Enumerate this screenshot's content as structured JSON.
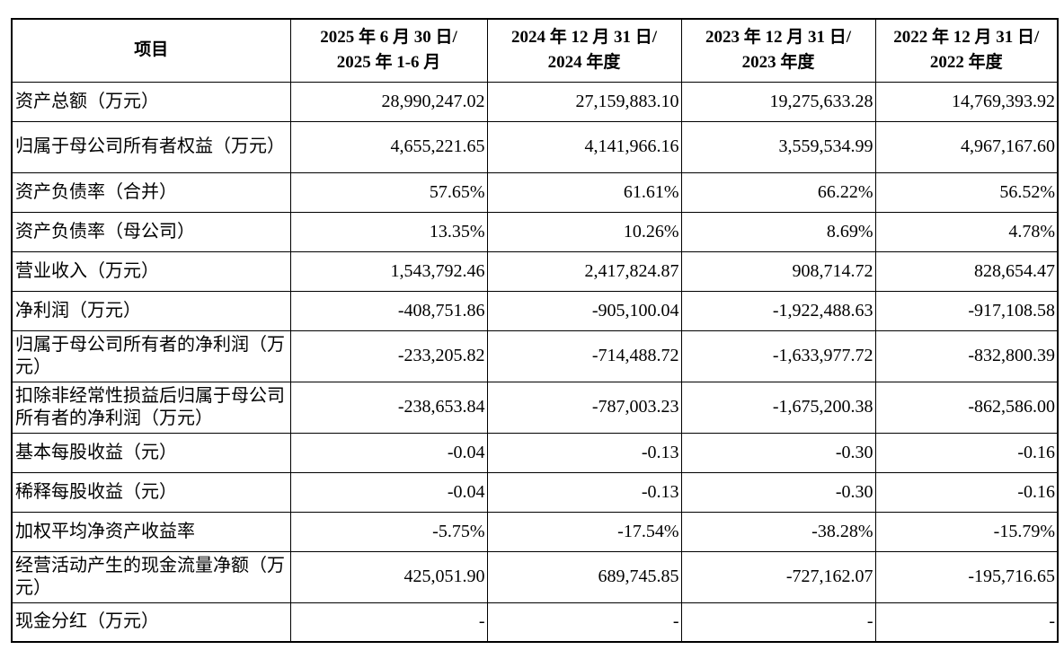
{
  "table": {
    "header": {
      "item": "项目",
      "periods": [
        {
          "line1": "2025 年 6 月 30 日/",
          "line2": "2025 年 1-6 月"
        },
        {
          "line1": "2024 年 12 月 31 日/",
          "line2": "2024 年度"
        },
        {
          "line1": "2023 年 12 月 31 日/",
          "line2": "2023 年度"
        },
        {
          "line1": "2022 年 12 月 31 日/",
          "line2": "2022 年度"
        }
      ]
    },
    "rows": [
      {
        "label": "资产总额（万元）",
        "values": [
          "28,990,247.02",
          "27,159,883.10",
          "19,275,633.28",
          "14,769,393.92"
        ]
      },
      {
        "label": "归属于母公司所有者权益（万元）",
        "values": [
          "4,655,221.65",
          "4,141,966.16",
          "3,559,534.99",
          "4,967,167.60"
        ]
      },
      {
        "label": "资产负债率（合并）",
        "values": [
          "57.65%",
          "61.61%",
          "66.22%",
          "56.52%"
        ]
      },
      {
        "label": "资产负债率（母公司）",
        "values": [
          "13.35%",
          "10.26%",
          "8.69%",
          "4.78%"
        ]
      },
      {
        "label": "营业收入（万元）",
        "values": [
          "1,543,792.46",
          "2,417,824.87",
          "908,714.72",
          "828,654.47"
        ]
      },
      {
        "label": "净利润（万元）",
        "values": [
          "-408,751.86",
          "-905,100.04",
          "-1,922,488.63",
          "-917,108.58"
        ]
      },
      {
        "label": "归属于母公司所有者的净利润（万元）",
        "values": [
          "-233,205.82",
          "-714,488.72",
          "-1,633,977.72",
          "-832,800.39"
        ]
      },
      {
        "label": "扣除非经常性损益后归属于母公司所有者的净利润（万元）",
        "values": [
          "-238,653.84",
          "-787,003.23",
          "-1,675,200.38",
          "-862,586.00"
        ]
      },
      {
        "label": "基本每股收益（元）",
        "values": [
          "-0.04",
          "-0.13",
          "-0.30",
          "-0.16"
        ]
      },
      {
        "label": "稀释每股收益（元）",
        "values": [
          "-0.04",
          "-0.13",
          "-0.30",
          "-0.16"
        ]
      },
      {
        "label": "加权平均净资产收益率",
        "values": [
          "-5.75%",
          "-17.54%",
          "-38.28%",
          "-15.79%"
        ]
      },
      {
        "label": "经营活动产生的现金流量净额（万元）",
        "values": [
          "425,051.90",
          "689,745.85",
          "-727,162.07",
          "-195,716.65"
        ]
      },
      {
        "label": "现金分红（万元）",
        "values": [
          "-",
          "-",
          "-",
          "-"
        ]
      }
    ]
  }
}
